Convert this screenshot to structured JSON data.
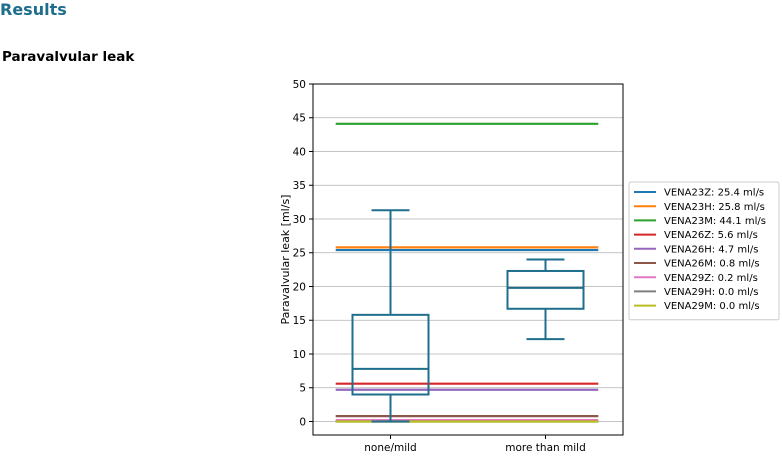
{
  "page": {
    "heading": "Results",
    "section_title": "Paravalvular leak"
  },
  "chart_data": {
    "type": "box",
    "title": "",
    "xlabel": "",
    "ylabel": "Paravalvular leak [ml/s]",
    "ylim": [
      -2,
      50
    ],
    "yticks": [
      0,
      5,
      10,
      15,
      20,
      25,
      30,
      35,
      40,
      45,
      50
    ],
    "grid": "horizontal",
    "categories": [
      "none/mild",
      "more than mild"
    ],
    "box_color": "#1f6e8c",
    "boxes": [
      {
        "category": "none/mild",
        "whisker_low": 0.0,
        "q1": 4.0,
        "median": 7.8,
        "q3": 15.8,
        "whisker_high": 31.3
      },
      {
        "category": "more than mild",
        "whisker_low": 12.2,
        "q1": 16.7,
        "median": 19.8,
        "q3": 22.3,
        "whisker_high": 24.0
      }
    ],
    "legend_position": "right",
    "reference_lines": [
      {
        "name": "VENA23Z: 25.4 ml/s",
        "value": 25.4,
        "color": "#1f77b4"
      },
      {
        "name": "VENA23H: 25.8 ml/s",
        "value": 25.8,
        "color": "#ff7f0e"
      },
      {
        "name": "VENA23M: 44.1 ml/s",
        "value": 44.1,
        "color": "#2ca02c"
      },
      {
        "name": "VENA26Z: 5.6 ml/s",
        "value": 5.6,
        "color": "#d62728"
      },
      {
        "name": "VENA26H: 4.7 ml/s",
        "value": 4.7,
        "color": "#9467bd"
      },
      {
        "name": "VENA26M: 0.8 ml/s",
        "value": 0.8,
        "color": "#8c564b"
      },
      {
        "name": "VENA29Z: 0.2 ml/s",
        "value": 0.2,
        "color": "#e377c2"
      },
      {
        "name": "VENA29H: 0.0 ml/s",
        "value": 0.0,
        "color": "#7f7f7f"
      },
      {
        "name": "VENA29M: 0.0 ml/s",
        "value": 0.0,
        "color": "#bcbd22"
      }
    ]
  }
}
